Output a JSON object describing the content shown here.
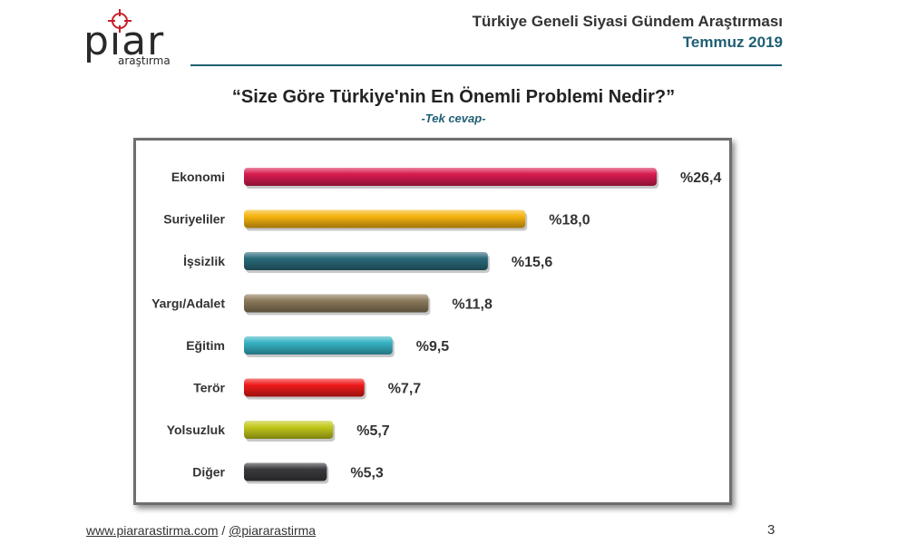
{
  "header": {
    "logo_word": "pıar",
    "logo_sub": "araştırma",
    "title": "Türkiye Geneli Siyasi Gündem Araştırması",
    "date": "Temmuz 2019"
  },
  "question": "“Size Göre Türkiye'nin En Önemli Problemi Nedir?”",
  "subtitle": "-Tek cevap-",
  "footer": {
    "website": "www.piararastirma.com",
    "separator": " / ",
    "handle": "@piararastirma",
    "page": "3"
  },
  "chart_data": {
    "type": "bar",
    "orientation": "horizontal",
    "categories": [
      "Ekonomi",
      "Suriyeliler",
      "İşsizlik",
      "Yargı/Adalet",
      "Eğitim",
      "Terör",
      "Yolsuzluk",
      "Diğer"
    ],
    "values": [
      26.4,
      18.0,
      15.6,
      11.8,
      9.5,
      7.7,
      5.7,
      5.3
    ],
    "labels": [
      "%26,4",
      "%18,0",
      "%15,6",
      "%11,8",
      "%9,5",
      "%7,7",
      "%5,7",
      "%5,3"
    ],
    "colors": [
      "#d81b4f",
      "#f6b40e",
      "#2a6a7a",
      "#8b7a5a",
      "#36b3c3",
      "#ee1a1a",
      "#c2c81a",
      "#3a3a3e"
    ],
    "xlim": [
      0,
      26.4
    ],
    "grid": false,
    "legend": "none"
  }
}
